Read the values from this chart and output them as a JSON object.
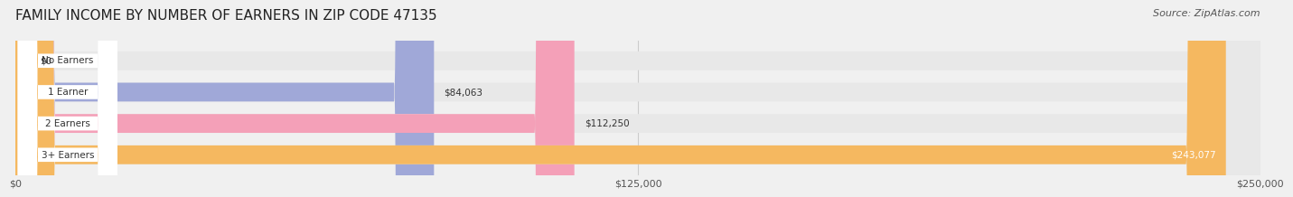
{
  "title": "FAMILY INCOME BY NUMBER OF EARNERS IN ZIP CODE 47135",
  "source": "Source: ZipAtlas.com",
  "categories": [
    "No Earners",
    "1 Earner",
    "2 Earners",
    "3+ Earners"
  ],
  "values": [
    0,
    84063,
    112250,
    243077
  ],
  "bar_colors": [
    "#6dd5d5",
    "#a0a8d8",
    "#f4a0b8",
    "#f5b860"
  ],
  "label_colors": [
    "#333333",
    "#333333",
    "#333333",
    "#ffffff"
  ],
  "value_labels": [
    "$0",
    "$84,063",
    "$112,250",
    "$243,077"
  ],
  "xlim": [
    0,
    250000
  ],
  "xticks": [
    0,
    125000,
    250000
  ],
  "xtick_labels": [
    "$0",
    "$125,000",
    "$250,000"
  ],
  "background_color": "#f0f0f0",
  "bar_background_color": "#e8e8e8",
  "title_fontsize": 11,
  "source_fontsize": 8,
  "bar_height": 0.6,
  "figsize": [
    14.06,
    2.33
  ]
}
